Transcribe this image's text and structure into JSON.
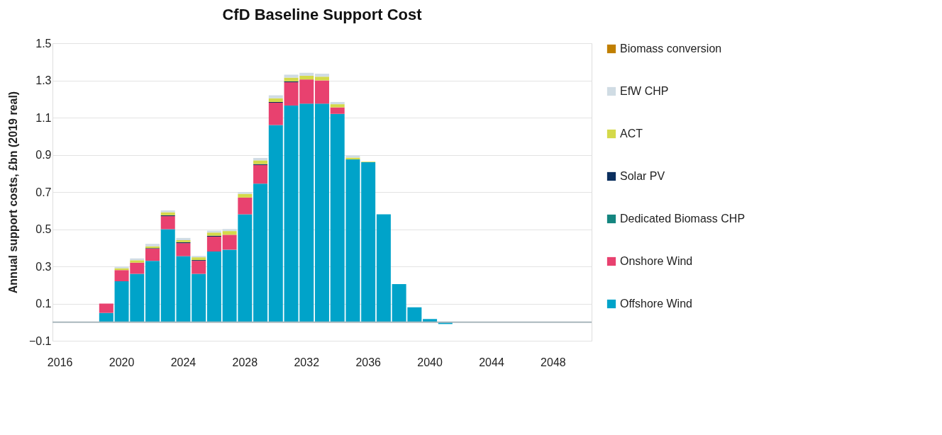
{
  "chart_data": {
    "type": "bar",
    "title": "CfD Baseline Support Cost",
    "ylabel": "Annual support costs, £bn (2019 real)",
    "categories": [
      "2016",
      null,
      null,
      null,
      "2020",
      null,
      null,
      null,
      "2024",
      null,
      null,
      null,
      "2028",
      null,
      null,
      null,
      "2032",
      null,
      null,
      null,
      "2036",
      null,
      null,
      null,
      "2040",
      null,
      null,
      null,
      "2044",
      null,
      null,
      null,
      "2048",
      null,
      null
    ],
    "stacked": true,
    "series": [
      {
        "name": "Offshore Wind",
        "color": "#00a3c9",
        "values": [
          0,
          0,
          0,
          0.05,
          0.22,
          0.26,
          0.33,
          0.5,
          0.355,
          0.26,
          0.38,
          0.39,
          0.58,
          0.745,
          1.06,
          1.165,
          1.175,
          1.175,
          1.12,
          0.875,
          0.86,
          0.58,
          0.205,
          0.08,
          0.017,
          -0.01,
          0,
          0,
          0,
          0,
          0,
          0,
          0,
          0,
          0
        ]
      },
      {
        "name": "Onshore Wind",
        "color": "#e8416f",
        "values": [
          0,
          0,
          0,
          0.05,
          0.06,
          0.06,
          0.065,
          0.07,
          0.07,
          0.07,
          0.08,
          0.08,
          0.09,
          0.1,
          0.12,
          0.125,
          0.13,
          0.125,
          0.035,
          0,
          0,
          0,
          0,
          0,
          0,
          0,
          0,
          0,
          0,
          0,
          0,
          0,
          0,
          0,
          0
        ]
      },
      {
        "name": "Dedicated Biomass CHP",
        "color": "#14857f",
        "values": [
          0,
          0,
          0,
          0,
          0,
          0,
          0,
          0,
          0,
          0,
          0,
          0,
          0,
          0,
          0,
          0,
          0,
          0,
          0,
          0,
          0,
          0,
          0,
          0,
          0,
          0,
          0,
          0,
          0,
          0,
          0,
          0,
          0,
          0,
          0
        ]
      },
      {
        "name": "Solar PV",
        "color": "#0b2f5e",
        "values": [
          0,
          0,
          0,
          0,
          0,
          0,
          0.003,
          0.005,
          0.005,
          0.004,
          0.005,
          0,
          0,
          0.005,
          0.004,
          0.005,
          0,
          0,
          0,
          0,
          0,
          0,
          0,
          0,
          0,
          0,
          0,
          0,
          0,
          0,
          0,
          0,
          0,
          0,
          0
        ]
      },
      {
        "name": "ACT",
        "color": "#d4d94a",
        "values": [
          0,
          0,
          0,
          0,
          0.01,
          0.013,
          0.01,
          0.016,
          0.011,
          0.015,
          0.017,
          0.02,
          0.02,
          0.02,
          0.02,
          0.02,
          0.02,
          0.02,
          0.017,
          0.01,
          0.003,
          0,
          0,
          0,
          0,
          0,
          0,
          0,
          0,
          0,
          0,
          0,
          0,
          0,
          0
        ]
      },
      {
        "name": "EfW CHP",
        "color": "#d0dce4",
        "values": [
          0,
          0,
          0,
          0,
          0.008,
          0.01,
          0.013,
          0.01,
          0.012,
          0.007,
          0.01,
          0.011,
          0.01,
          0.013,
          0.016,
          0.016,
          0.016,
          0.016,
          0.012,
          0.011,
          0,
          0,
          0,
          0,
          0,
          0,
          0,
          0,
          0,
          0,
          0,
          0,
          0,
          0,
          0
        ]
      },
      {
        "name": "Biomass conversion",
        "color": "#c07f00",
        "values": [
          0,
          0,
          0,
          0,
          0,
          0,
          0,
          0,
          0,
          0,
          0,
          0,
          0,
          0,
          0,
          0,
          0,
          0,
          0,
          0,
          0,
          0,
          0,
          0,
          0,
          0,
          0,
          0,
          0,
          0,
          0,
          0,
          0,
          0,
          0
        ]
      }
    ],
    "ylim": [
      -0.1,
      1.5
    ],
    "yticks": [
      -0.1,
      0.1,
      0.3,
      0.5,
      0.7,
      0.9,
      1.1,
      1.3,
      1.5
    ],
    "grid": "y",
    "legend": "right"
  }
}
